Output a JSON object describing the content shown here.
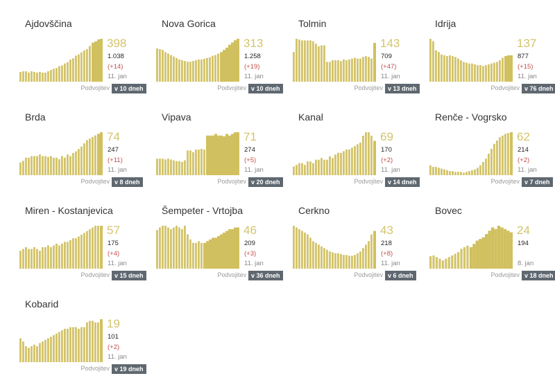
{
  "colors": {
    "bar": "#d3c46b",
    "bar_highlight": "#d1c05f",
    "number": "#d3c46b",
    "delta": "#c0504d",
    "badge_bg": "#5f6870"
  },
  "doubling_label": "Podvojitev",
  "chart_data": [
    {
      "type": "bar",
      "title": "Ajdovščina",
      "active": "398",
      "cumulative": "1.038",
      "delta": "(+14)",
      "date": "11. jan",
      "doubling": "v 10 dneh",
      "values": [
        15,
        16,
        16,
        14,
        16,
        15,
        14,
        15,
        14,
        14,
        16,
        18,
        20,
        21,
        24,
        25,
        28,
        30,
        34,
        36,
        40,
        42,
        45,
        48,
        50,
        55,
        60,
        62,
        65,
        66
      ],
      "highlight_from": 26
    },
    {
      "type": "bar",
      "title": "Nova Gorica",
      "active": "313",
      "cumulative": "1.258",
      "delta": "(+19)",
      "date": "11. jan",
      "doubling": "v 10 dneh",
      "values": [
        45,
        44,
        43,
        40,
        38,
        36,
        34,
        32,
        30,
        29,
        28,
        27,
        27,
        28,
        29,
        30,
        30,
        31,
        32,
        33,
        35,
        36,
        38,
        40,
        43,
        46,
        50,
        53,
        56,
        58
      ],
      "highlight_from": 23
    },
    {
      "type": "bar",
      "title": "Tolmin",
      "active": "143",
      "cumulative": "709",
      "delta": "(+47)",
      "date": "11. jan",
      "doubling": "v 13 dneh",
      "values": [
        36,
        52,
        51,
        50,
        50,
        50,
        50,
        49,
        46,
        43,
        44,
        44,
        24,
        24,
        26,
        26,
        26,
        25,
        27,
        26,
        27,
        28,
        29,
        28,
        28,
        30,
        31,
        30,
        28,
        47
      ],
      "highlight_from": 29
    },
    {
      "type": "bar",
      "title": "Idrija",
      "active": "137",
      "cumulative": "877",
      "delta": "(+15)",
      "date": "11. jan",
      "doubling": "v 76 dneh",
      "values": [
        52,
        49,
        38,
        36,
        33,
        32,
        31,
        32,
        31,
        30,
        28,
        26,
        24,
        23,
        22,
        22,
        21,
        20,
        20,
        19,
        20,
        21,
        22,
        23,
        24,
        26,
        29,
        31,
        32,
        32
      ],
      "highlight_from": 27
    },
    {
      "type": "bar",
      "title": "Brda",
      "active": "74",
      "cumulative": "247",
      "delta": "(+11)",
      "date": "11. jan",
      "doubling": "v 8 dneh",
      "values": [
        16,
        18,
        22,
        22,
        24,
        24,
        24,
        26,
        24,
        24,
        23,
        24,
        22,
        22,
        20,
        24,
        22,
        26,
        24,
        28,
        30,
        33,
        36,
        40,
        44,
        46,
        48,
        50,
        52,
        54
      ],
      "highlight_from": 28
    },
    {
      "type": "bar",
      "title": "Vipava",
      "active": "71",
      "cumulative": "274",
      "delta": "(+5)",
      "date": "11. jan",
      "doubling": "v 20 dneh",
      "values": [
        20,
        20,
        20,
        19,
        20,
        19,
        18,
        17,
        17,
        16,
        18,
        30,
        30,
        28,
        31,
        31,
        32,
        31,
        48,
        48,
        48,
        50,
        48,
        48,
        47,
        50,
        48,
        50,
        52,
        52
      ],
      "highlight_from": 18
    },
    {
      "type": "bar",
      "title": "Kanal",
      "active": "69",
      "cumulative": "170",
      "delta": "(+2)",
      "date": "11. jan",
      "doubling": "v 14 dneh",
      "values": [
        10,
        12,
        14,
        14,
        12,
        16,
        16,
        14,
        18,
        18,
        20,
        18,
        18,
        22,
        20,
        24,
        26,
        26,
        28,
        30,
        30,
        32,
        34,
        36,
        38,
        46,
        50,
        50,
        46,
        40
      ],
      "highlight_from": 29
    },
    {
      "type": "bar",
      "title": "Renče - Vogrsko",
      "active": "62",
      "cumulative": "214",
      "delta": "(+2)",
      "date": "11. jan",
      "doubling": "v 7 dneh",
      "values": [
        12,
        10,
        10,
        9,
        8,
        7,
        6,
        5,
        5,
        4,
        4,
        4,
        3,
        4,
        5,
        6,
        7,
        9,
        12,
        16,
        20,
        26,
        32,
        38,
        42,
        46,
        48,
        50,
        51,
        52
      ],
      "highlight_from": 29
    },
    {
      "type": "bar",
      "title": "Miren - Kostanjevica",
      "active": "57",
      "cumulative": "175",
      "delta": "(+4)",
      "date": "11. jan",
      "doubling": "v 15 dneh",
      "values": [
        20,
        22,
        24,
        22,
        22,
        24,
        22,
        20,
        24,
        24,
        26,
        24,
        26,
        28,
        26,
        28,
        30,
        30,
        32,
        34,
        34,
        36,
        38,
        40,
        42,
        44,
        46,
        48,
        48,
        48
      ],
      "highlight_from": 29
    },
    {
      "type": "bar",
      "title": "Šempeter - Vrtojba",
      "active": "46",
      "cumulative": "209",
      "delta": "(+3)",
      "date": "11. jan",
      "doubling": "v 36 dneh",
      "values": [
        45,
        48,
        50,
        50,
        48,
        46,
        48,
        50,
        48,
        46,
        50,
        40,
        34,
        30,
        30,
        32,
        30,
        30,
        32,
        34,
        36,
        36,
        38,
        40,
        42,
        44,
        46,
        46,
        48,
        48
      ],
      "highlight_from": 17
    },
    {
      "type": "bar",
      "title": "Cerkno",
      "active": "43",
      "cumulative": "218",
      "delta": "(+8)",
      "date": "11. jan",
      "doubling": "v 6 dneh",
      "values": [
        50,
        48,
        46,
        44,
        42,
        40,
        36,
        32,
        30,
        28,
        26,
        24,
        22,
        20,
        19,
        18,
        18,
        17,
        16,
        16,
        15,
        15,
        16,
        18,
        20,
        24,
        28,
        32,
        40,
        44
      ],
      "highlight_from": 29
    },
    {
      "type": "bar",
      "title": "Bovec",
      "active": "24",
      "cumulative": "194",
      "delta": "",
      "date": "8. jan",
      "doubling": "v 18 dneh",
      "values": [
        15,
        16,
        14,
        12,
        10,
        12,
        14,
        16,
        18,
        20,
        24,
        26,
        28,
        26,
        30,
        34,
        36,
        38,
        42,
        46,
        50,
        48,
        52,
        50,
        48,
        46,
        44
      ],
      "highlight_from": 13
    },
    {
      "type": "bar",
      "title": "Kobarid",
      "active": "19",
      "cumulative": "101",
      "delta": "(+2)",
      "date": "11. jan",
      "doubling": "v 19 dneh",
      "values": [
        30,
        26,
        20,
        18,
        20,
        22,
        20,
        24,
        26,
        28,
        30,
        32,
        34,
        36,
        38,
        40,
        42,
        42,
        44,
        44,
        44,
        42,
        44,
        44,
        50,
        52,
        52,
        50,
        50,
        54
      ],
      "highlight_from": 29
    }
  ]
}
